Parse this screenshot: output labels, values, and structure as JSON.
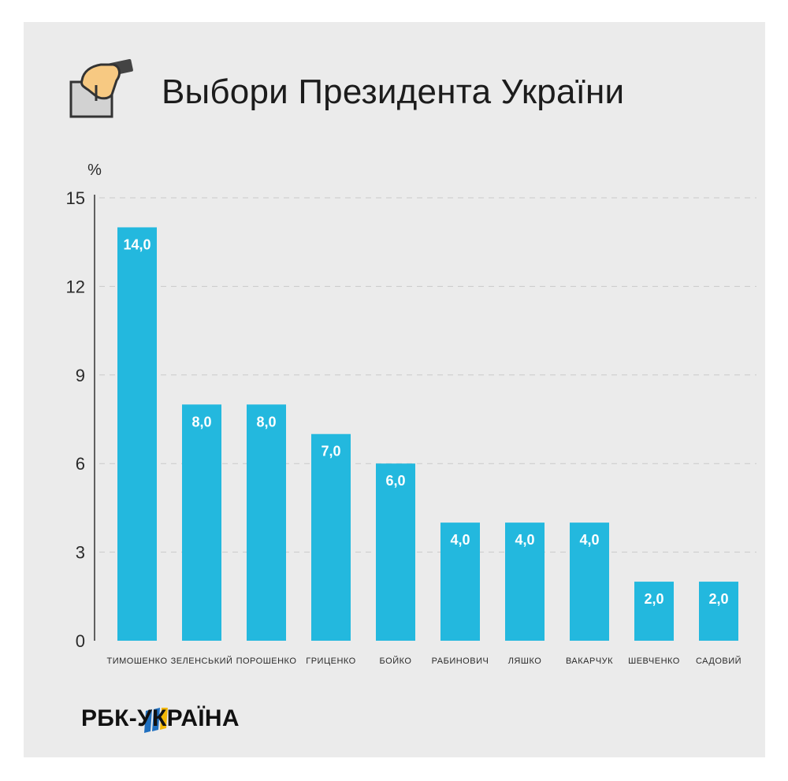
{
  "header": {
    "title": "Выбори Президента України",
    "icon": "ballot-box-icon"
  },
  "chart_data": {
    "type": "bar",
    "ylabel": "%",
    "ylim": [
      0,
      15
    ],
    "yticks": [
      0,
      3,
      6,
      9,
      12,
      15
    ],
    "grid": true,
    "categories": [
      "ТИМОШЕНКО",
      "ЗЕЛЕНСЬКИЙ",
      "ПОРОШЕНКО",
      "ГРИЦЕНКО",
      "БОЙКО",
      "РАБИНОВИЧ",
      "ЛЯШКО",
      "ВАКАРЧУК",
      "ШЕВЧЕНКО",
      "САДОВИЙ"
    ],
    "values": [
      14.0,
      8.0,
      8.0,
      7.0,
      6.0,
      4.0,
      4.0,
      4.0,
      2.0,
      2.0
    ],
    "value_labels": [
      "14,0",
      "8,0",
      "8,0",
      "7,0",
      "6,0",
      "4,0",
      "4,0",
      "4,0",
      "2,0",
      "2,0"
    ],
    "bar_color": "#23b8de"
  },
  "footer": {
    "logo_text": "РБК-УКРАЇНА",
    "logo_icon": "rbc-flag-icon",
    "logo_colors": [
      "#1f6fbf",
      "#f2b705"
    ]
  }
}
